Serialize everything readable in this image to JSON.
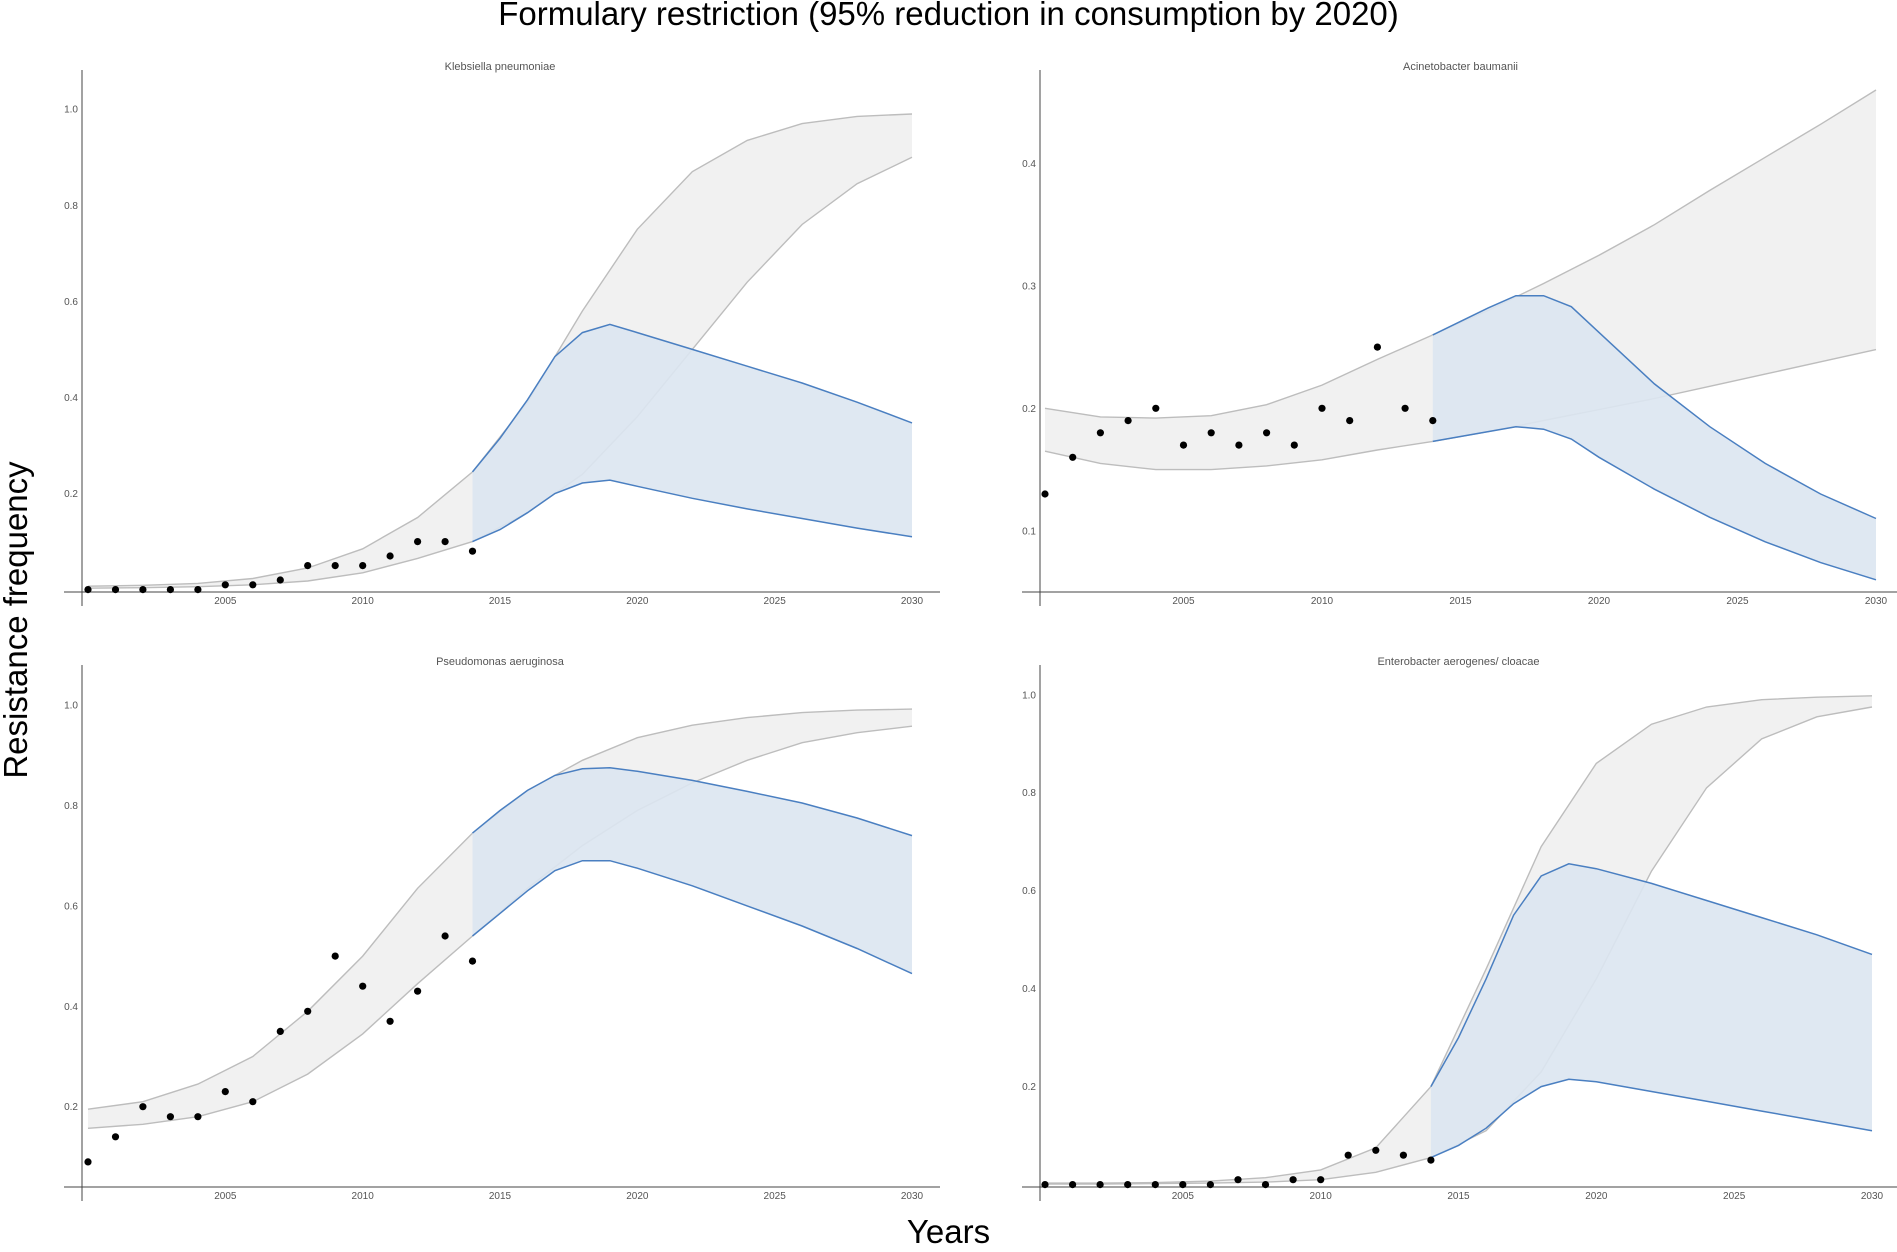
{
  "title": "Formulary restriction (95% reduction in consumption by 2020)",
  "xlabel": "Years",
  "ylabel": "Resistance frequency",
  "colors": {
    "historic_band": "#f1f1f1",
    "historic_line": "#bdbdbd",
    "forecast_band": "#dbe5f1",
    "forecast_line": "#4a7fc1",
    "points": "#000000"
  },
  "chart_data": [
    {
      "type": "area",
      "title": "Klebsiella  pneumoniae",
      "xlim": [
        2000,
        2030
      ],
      "ylim": [
        -0.005,
        1.04
      ],
      "xticks": [
        "2005",
        "2010",
        "2015",
        "2020",
        "2025",
        "2030"
      ],
      "yticks": [
        "0.2",
        "0.4",
        "0.6",
        "0.8",
        "1.0"
      ],
      "observed": {
        "x": [
          2000,
          2001,
          2002,
          2003,
          2004,
          2005,
          2006,
          2007,
          2008,
          2009,
          2010,
          2011,
          2012,
          2013,
          2014
        ],
        "y": [
          0.0,
          0.0,
          0.0,
          0.0,
          0.0,
          0.01,
          0.01,
          0.02,
          0.05,
          0.05,
          0.05,
          0.07,
          0.1,
          0.1,
          0.08
        ]
      },
      "baseline_band": {
        "x": [
          2000,
          2002,
          2004,
          2006,
          2008,
          2010,
          2012,
          2014,
          2016,
          2018,
          2020,
          2022,
          2024,
          2026,
          2028,
          2030
        ],
        "upper": [
          0.007,
          0.009,
          0.013,
          0.023,
          0.045,
          0.085,
          0.15,
          0.245,
          0.39,
          0.58,
          0.75,
          0.87,
          0.935,
          0.97,
          0.985,
          0.99
        ],
        "lower": [
          0.003,
          0.004,
          0.006,
          0.01,
          0.018,
          0.035,
          0.065,
          0.1,
          0.16,
          0.24,
          0.36,
          0.5,
          0.64,
          0.76,
          0.845,
          0.9
        ]
      },
      "forecast_band": {
        "x": [
          2014,
          2015,
          2016,
          2017,
          2018,
          2019,
          2020,
          2022,
          2024,
          2026,
          2028,
          2030
        ],
        "upper": [
          0.245,
          0.315,
          0.395,
          0.485,
          0.535,
          0.552,
          0.535,
          0.5,
          0.465,
          0.43,
          0.39,
          0.347
        ],
        "lower": [
          0.1,
          0.125,
          0.16,
          0.2,
          0.222,
          0.228,
          0.215,
          0.19,
          0.168,
          0.148,
          0.128,
          0.11
        ]
      }
    },
    {
      "type": "area",
      "title": "Acinetobacter  baumanii",
      "xlim": [
        2000,
        2030
      ],
      "ylim": [
        0.05,
        0.46
      ],
      "xticks": [
        "2005",
        "2010",
        "2015",
        "2020",
        "2025",
        "2030"
      ],
      "yticks": [
        "0.1",
        "0.2",
        "0.3",
        "0.4"
      ],
      "observed": {
        "x": [
          2000,
          2001,
          2002,
          2003,
          2004,
          2005,
          2006,
          2007,
          2008,
          2009,
          2010,
          2011,
          2012,
          2013,
          2014
        ],
        "y": [
          0.13,
          0.16,
          0.18,
          0.19,
          0.2,
          0.17,
          0.18,
          0.17,
          0.18,
          0.17,
          0.2,
          0.19,
          0.25,
          0.2,
          0.19
        ]
      },
      "baseline_band": {
        "x": [
          2000,
          2002,
          2004,
          2006,
          2008,
          2010,
          2012,
          2014,
          2016,
          2018,
          2020,
          2022,
          2024,
          2026,
          2028,
          2030
        ],
        "upper": [
          0.2,
          0.193,
          0.192,
          0.194,
          0.203,
          0.219,
          0.24,
          0.26,
          0.28,
          0.302,
          0.325,
          0.35,
          0.378,
          0.405,
          0.432,
          0.46
        ],
        "lower": [
          0.165,
          0.155,
          0.15,
          0.15,
          0.153,
          0.158,
          0.166,
          0.173,
          0.181,
          0.19,
          0.199,
          0.208,
          0.218,
          0.228,
          0.238,
          0.248
        ]
      },
      "forecast_band": {
        "x": [
          2014,
          2015,
          2016,
          2017,
          2018,
          2019,
          2020,
          2022,
          2024,
          2026,
          2028,
          2030
        ],
        "upper": [
          0.26,
          0.271,
          0.282,
          0.292,
          0.292,
          0.283,
          0.262,
          0.22,
          0.185,
          0.155,
          0.13,
          0.11
        ],
        "lower": [
          0.173,
          0.177,
          0.181,
          0.185,
          0.183,
          0.175,
          0.16,
          0.134,
          0.111,
          0.091,
          0.074,
          0.06
        ]
      }
    },
    {
      "type": "area",
      "title": "Pseudomonas  aeruginosa",
      "xlim": [
        2000,
        2030
      ],
      "ylim": [
        0.04,
        1.04
      ],
      "xticks": [
        "2005",
        "2010",
        "2015",
        "2020",
        "2025",
        "2030"
      ],
      "yticks": [
        "0.2",
        "0.4",
        "0.6",
        "0.8",
        "1.0"
      ],
      "observed": {
        "x": [
          2000,
          2001,
          2002,
          2003,
          2004,
          2005,
          2006,
          2007,
          2008,
          2009,
          2010,
          2011,
          2012,
          2013,
          2014
        ],
        "y": [
          0.09,
          0.14,
          0.2,
          0.18,
          0.18,
          0.23,
          0.21,
          0.35,
          0.39,
          0.5,
          0.44,
          0.37,
          0.43,
          0.54,
          0.49
        ]
      },
      "baseline_band": {
        "x": [
          2000,
          2002,
          2004,
          2006,
          2008,
          2010,
          2012,
          2014,
          2016,
          2018,
          2020,
          2022,
          2024,
          2026,
          2028,
          2030
        ],
        "upper": [
          0.195,
          0.21,
          0.245,
          0.3,
          0.39,
          0.5,
          0.635,
          0.745,
          0.83,
          0.89,
          0.935,
          0.96,
          0.975,
          0.985,
          0.99,
          0.992
        ],
        "lower": [
          0.157,
          0.165,
          0.18,
          0.21,
          0.265,
          0.345,
          0.445,
          0.54,
          0.635,
          0.72,
          0.79,
          0.845,
          0.89,
          0.925,
          0.945,
          0.958
        ]
      },
      "forecast_band": {
        "x": [
          2014,
          2015,
          2016,
          2017,
          2018,
          2019,
          2020,
          2022,
          2024,
          2026,
          2028,
          2030
        ],
        "upper": [
          0.745,
          0.79,
          0.83,
          0.86,
          0.873,
          0.875,
          0.868,
          0.85,
          0.828,
          0.805,
          0.775,
          0.74
        ],
        "lower": [
          0.54,
          0.585,
          0.63,
          0.67,
          0.69,
          0.69,
          0.675,
          0.64,
          0.6,
          0.56,
          0.515,
          0.465
        ]
      }
    },
    {
      "type": "area",
      "title": "Enterobacter  aerogenes/ cloacae",
      "xlim": [
        2000,
        2030
      ],
      "ylim": [
        -0.005,
        1.02
      ],
      "xticks": [
        "2005",
        "2010",
        "2015",
        "2020",
        "2025",
        "2030"
      ],
      "yticks": [
        "0.2",
        "0.4",
        "0.6",
        "0.8",
        "1.0"
      ],
      "observed": {
        "x": [
          2000,
          2001,
          2002,
          2003,
          2004,
          2005,
          2006,
          2007,
          2008,
          2009,
          2010,
          2011,
          2012,
          2013,
          2014
        ],
        "y": [
          0.0,
          0.0,
          0.0,
          0.0,
          0.0,
          0.0,
          0.0,
          0.01,
          0.0,
          0.01,
          0.01,
          0.06,
          0.07,
          0.06,
          0.05
        ]
      },
      "baseline_band": {
        "x": [
          2000,
          2002,
          2004,
          2006,
          2008,
          2010,
          2012,
          2014,
          2016,
          2018,
          2020,
          2022,
          2024,
          2026,
          2028,
          2030
        ],
        "upper": [
          0.003,
          0.003,
          0.004,
          0.007,
          0.014,
          0.03,
          0.075,
          0.2,
          0.44,
          0.69,
          0.86,
          0.94,
          0.975,
          0.99,
          0.995,
          0.998
        ],
        "lower": [
          0.001,
          0.001,
          0.002,
          0.003,
          0.005,
          0.01,
          0.025,
          0.055,
          0.11,
          0.23,
          0.42,
          0.64,
          0.81,
          0.91,
          0.955,
          0.975
        ]
      },
      "forecast_band": {
        "x": [
          2014,
          2015,
          2016,
          2017,
          2018,
          2019,
          2020,
          2022,
          2024,
          2026,
          2028,
          2030
        ],
        "upper": [
          0.2,
          0.3,
          0.42,
          0.55,
          0.63,
          0.655,
          0.645,
          0.615,
          0.58,
          0.545,
          0.51,
          0.47
        ],
        "lower": [
          0.055,
          0.08,
          0.115,
          0.165,
          0.2,
          0.215,
          0.21,
          0.19,
          0.17,
          0.15,
          0.13,
          0.11
        ]
      }
    }
  ]
}
